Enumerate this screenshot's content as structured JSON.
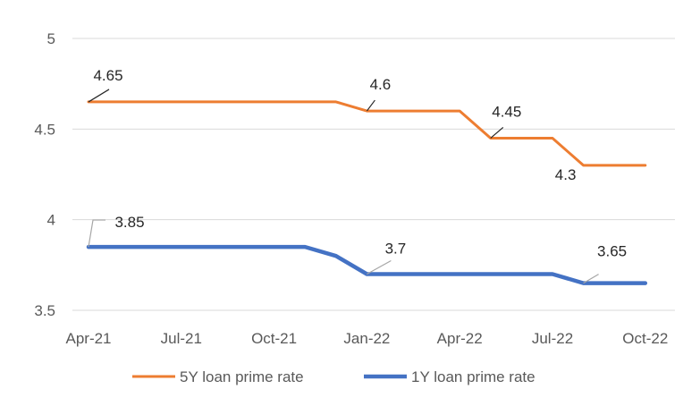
{
  "chart_data": {
    "type": "line",
    "title": "",
    "xlabel": "",
    "ylabel": "",
    "x": [
      "2021-04",
      "2021-05",
      "2021-06",
      "2021-07",
      "2021-08",
      "2021-09",
      "2021-10",
      "2021-11",
      "2021-12",
      "2022-01",
      "2022-02",
      "2022-03",
      "2022-04",
      "2022-05",
      "2022-06",
      "2022-07",
      "2022-08",
      "2022-09",
      "2022-10"
    ],
    "x_tick_labels": [
      "Apr-21",
      "Jul-21",
      "Oct-21",
      "Jan-22",
      "Apr-22",
      "Jul-22",
      "Oct-22"
    ],
    "y_ticks": [
      "5",
      "4.5",
      "4",
      "3.5"
    ],
    "ylim": [
      3.5,
      5
    ],
    "grid": true,
    "legend_position": "bottom",
    "series": [
      {
        "name": "5Y loan prime rate",
        "color": "#ED7D31",
        "values": [
          4.65,
          4.65,
          4.65,
          4.65,
          4.65,
          4.65,
          4.65,
          4.65,
          4.65,
          4.6,
          4.6,
          4.6,
          4.6,
          4.45,
          4.45,
          4.45,
          4.3,
          4.3,
          4.3
        ],
        "data_labels": [
          {
            "index": 0,
            "text": "4.65"
          },
          {
            "index": 9,
            "text": "4.6"
          },
          {
            "index": 13,
            "text": "4.45"
          },
          {
            "index": 16,
            "text": "4.3"
          }
        ]
      },
      {
        "name": "1Y loan prime rate",
        "color": "#4472C4",
        "values": [
          3.85,
          3.85,
          3.85,
          3.85,
          3.85,
          3.85,
          3.85,
          3.85,
          3.8,
          3.7,
          3.7,
          3.7,
          3.7,
          3.7,
          3.7,
          3.7,
          3.65,
          3.65,
          3.65
        ],
        "data_labels": [
          {
            "index": 0,
            "text": "3.85"
          },
          {
            "index": 9,
            "text": "3.7"
          },
          {
            "index": 16,
            "text": "3.65"
          }
        ]
      }
    ]
  }
}
